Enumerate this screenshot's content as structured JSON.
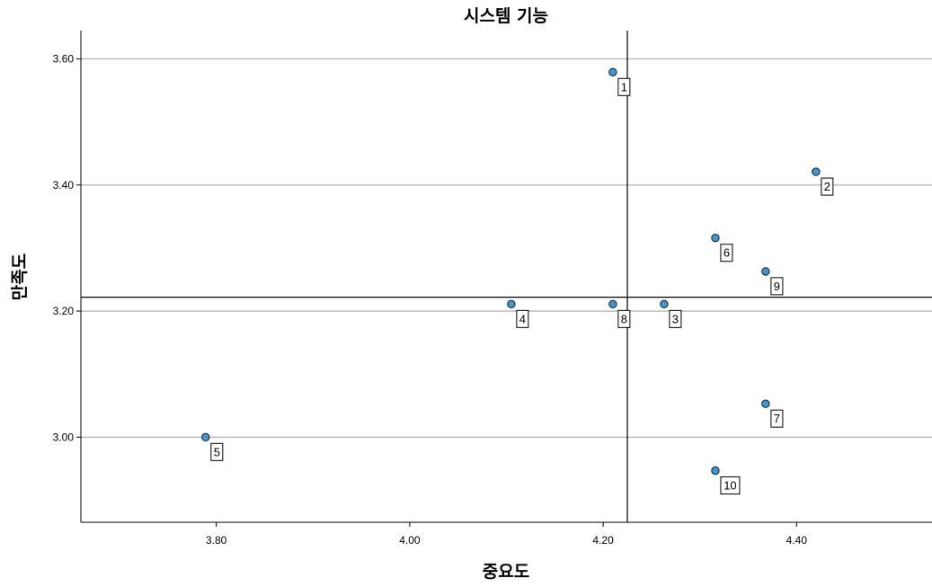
{
  "chart_data": {
    "type": "scatter",
    "title": "시스템 기능",
    "xlabel": "중요도",
    "ylabel": "만족도",
    "xlim": [
      3.66,
      4.54
    ],
    "ylim": [
      2.865,
      3.645
    ],
    "xticks": [
      3.8,
      4.0,
      4.2,
      4.4
    ],
    "xtick_labels": [
      "3.80",
      "4.00",
      "4.20",
      "4.40"
    ],
    "yticks": [
      3.0,
      3.2,
      3.4,
      3.6
    ],
    "ytick_labels": [
      "3.00",
      "3.20",
      "3.40",
      "3.60"
    ],
    "grid": "y-major",
    "reference_lines": {
      "x": 4.225,
      "y": 3.222
    },
    "marker_color": "#3a97d8",
    "points": [
      {
        "label": "1",
        "x": 4.21,
        "y": 3.579
      },
      {
        "label": "2",
        "x": 4.42,
        "y": 3.421
      },
      {
        "label": "3",
        "x": 4.263,
        "y": 3.211
      },
      {
        "label": "4",
        "x": 4.105,
        "y": 3.211
      },
      {
        "label": "5",
        "x": 3.789,
        "y": 3.0
      },
      {
        "label": "6",
        "x": 4.316,
        "y": 3.316
      },
      {
        "label": "7",
        "x": 4.368,
        "y": 3.053
      },
      {
        "label": "8",
        "x": 4.21,
        "y": 3.211
      },
      {
        "label": "9",
        "x": 4.368,
        "y": 3.263
      },
      {
        "label": "10",
        "x": 4.316,
        "y": 2.947
      }
    ]
  }
}
